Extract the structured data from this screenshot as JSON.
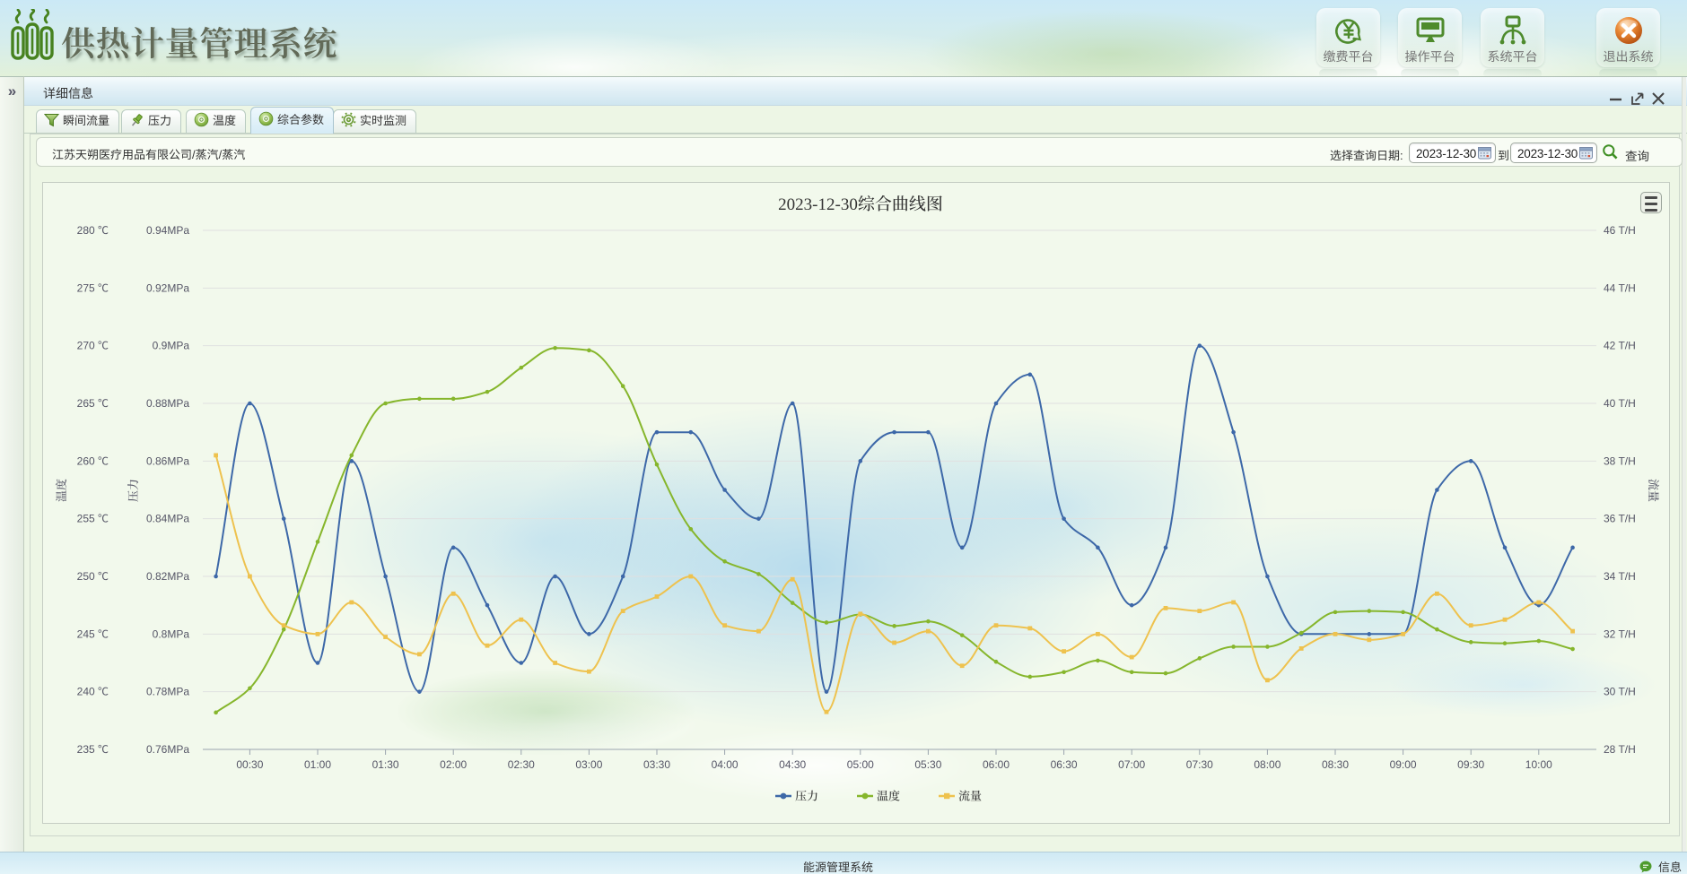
{
  "app": {
    "title": "供热计量管理系统",
    "nav_buttons": [
      {
        "label": "缴费平台",
        "icon": "yuan-pay-icon"
      },
      {
        "label": "操作平台",
        "icon": "monitor-icon"
      },
      {
        "label": "系统平台",
        "icon": "platform-icon"
      },
      {
        "label": "退出系统",
        "icon": "exit-icon"
      }
    ]
  },
  "sidebar": {
    "expand_icon": "»"
  },
  "panel": {
    "title": "详细信息",
    "tabs": [
      {
        "label": "瞬间流量",
        "icon": "funnel-icon",
        "active": false
      },
      {
        "label": "压力",
        "icon": "pin-icon",
        "active": false
      },
      {
        "label": "温度",
        "icon": "disc-icon",
        "active": false
      },
      {
        "label": "综合参数",
        "icon": "disc-icon",
        "active": true
      },
      {
        "label": "实时监测",
        "icon": "gear-icon",
        "active": false
      }
    ],
    "query": {
      "company_path": "江苏天朔医疗用品有限公司/蒸汽/蒸汽",
      "date_label": "选择查询日期:",
      "date_from": "2023-12-30",
      "to_label": "到",
      "date_to": "2023-12-30",
      "search_label": "查询"
    }
  },
  "statusbar": {
    "center_text": "能源管理系统",
    "message_label": "信息"
  },
  "chart_data": {
    "type": "line",
    "title": "2023-12-30综合曲线图",
    "x": [
      "00:15",
      "00:30",
      "00:45",
      "01:00",
      "01:15",
      "01:30",
      "01:45",
      "02:00",
      "02:15",
      "02:30",
      "02:45",
      "03:00",
      "03:15",
      "03:30",
      "03:45",
      "04:00",
      "04:15",
      "04:30",
      "04:45",
      "05:00",
      "05:15",
      "05:30",
      "05:45",
      "06:00",
      "06:15",
      "06:30",
      "06:45",
      "07:00",
      "07:15",
      "07:30",
      "07:45",
      "08:00",
      "08:15",
      "08:30",
      "08:45",
      "09:00",
      "09:15",
      "09:30",
      "09:45",
      "10:00",
      "10:15"
    ],
    "x_tick_labels": [
      "00:30",
      "01:00",
      "01:30",
      "02:00",
      "02:30",
      "03:00",
      "03:30",
      "04:00",
      "04:30",
      "05:00",
      "05:30",
      "06:00",
      "06:30",
      "07:00",
      "07:30",
      "08:00",
      "08:30",
      "09:00",
      "09:30",
      "10:00"
    ],
    "axes": {
      "temperature": {
        "name": "温度",
        "unit": "℃",
        "min": 235,
        "max": 280,
        "step": 5
      },
      "pressure": {
        "name": "压力",
        "unit": "MPa",
        "min": 0.76,
        "max": 0.94,
        "step": 0.02
      },
      "flow": {
        "name": "流量",
        "unit": "T/H",
        "min": 28,
        "max": 46,
        "step": 2
      }
    },
    "series": [
      {
        "name": "压力",
        "axis": "pressure",
        "color": "#3d68a8",
        "symbol": "circle",
        "values": [
          0.82,
          0.88,
          0.84,
          0.79,
          0.86,
          0.82,
          0.78,
          0.83,
          0.81,
          0.79,
          0.82,
          0.8,
          0.82,
          0.87,
          0.87,
          0.85,
          0.84,
          0.88,
          0.78,
          0.86,
          0.87,
          0.87,
          0.83,
          0.88,
          0.89,
          0.84,
          0.83,
          0.81,
          0.83,
          0.9,
          0.87,
          0.82,
          0.8,
          0.8,
          0.8,
          0.8,
          0.85,
          0.86,
          0.83,
          0.81,
          0.83
        ]
      },
      {
        "name": "温度",
        "axis": "temperature",
        "color": "#86b62c",
        "symbol": "circle",
        "values": [
          238.2,
          240.3,
          245.4,
          253.0,
          260.5,
          265.0,
          265.4,
          265.4,
          266.0,
          268.1,
          269.8,
          269.6,
          266.5,
          259.7,
          254.1,
          251.3,
          250.2,
          247.7,
          246.0,
          246.7,
          245.7,
          246.1,
          244.9,
          242.6,
          241.3,
          241.7,
          242.7,
          241.7,
          241.6,
          242.9,
          243.9,
          243.9,
          245.1,
          246.9,
          247.0,
          246.9,
          245.4,
          244.3,
          244.2,
          244.4,
          243.7
        ]
      },
      {
        "name": "流量",
        "axis": "flow",
        "color": "#eec24e",
        "symbol": "square",
        "values": [
          38.2,
          34.0,
          32.3,
          32.0,
          33.1,
          31.9,
          31.3,
          33.4,
          31.6,
          32.5,
          31.0,
          30.7,
          32.8,
          33.3,
          34.0,
          32.3,
          32.1,
          33.9,
          29.3,
          32.7,
          31.7,
          32.1,
          30.9,
          32.3,
          32.2,
          31.4,
          32.0,
          31.2,
          32.9,
          32.8,
          33.1,
          30.4,
          31.5,
          32.0,
          31.8,
          32.0,
          33.4,
          32.3,
          32.5,
          33.1,
          32.1
        ]
      }
    ],
    "legend": [
      "压力",
      "温度",
      "流量"
    ],
    "legend_position": "bottom",
    "grid": true,
    "toolbox_icon": "hamburger-icon"
  }
}
